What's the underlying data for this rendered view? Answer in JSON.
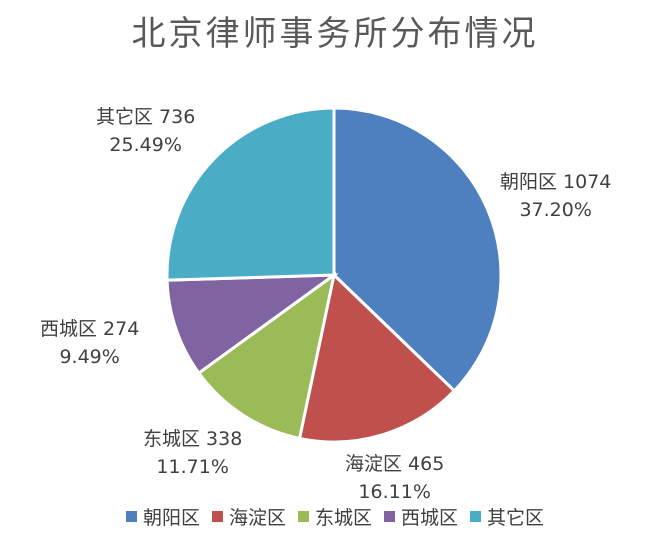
{
  "chart_data": {
    "type": "pie",
    "title": "北京律师事务所分布情况",
    "slices": [
      {
        "name": "朝阳区",
        "value": 1074,
        "percent": "37.20%",
        "color": "#4E7FBE"
      },
      {
        "name": "海淀区",
        "value": 465,
        "percent": "16.11%",
        "color": "#C0504D"
      },
      {
        "name": "东城区",
        "value": 338,
        "percent": "11.71%",
        "color": "#9BBB59"
      },
      {
        "name": "西城区",
        "value": 274,
        "percent": "9.49%",
        "color": "#8064A2"
      },
      {
        "name": "其它区",
        "value": 736,
        "percent": "25.49%",
        "color": "#4BACC6"
      }
    ],
    "legend_position": "bottom"
  }
}
